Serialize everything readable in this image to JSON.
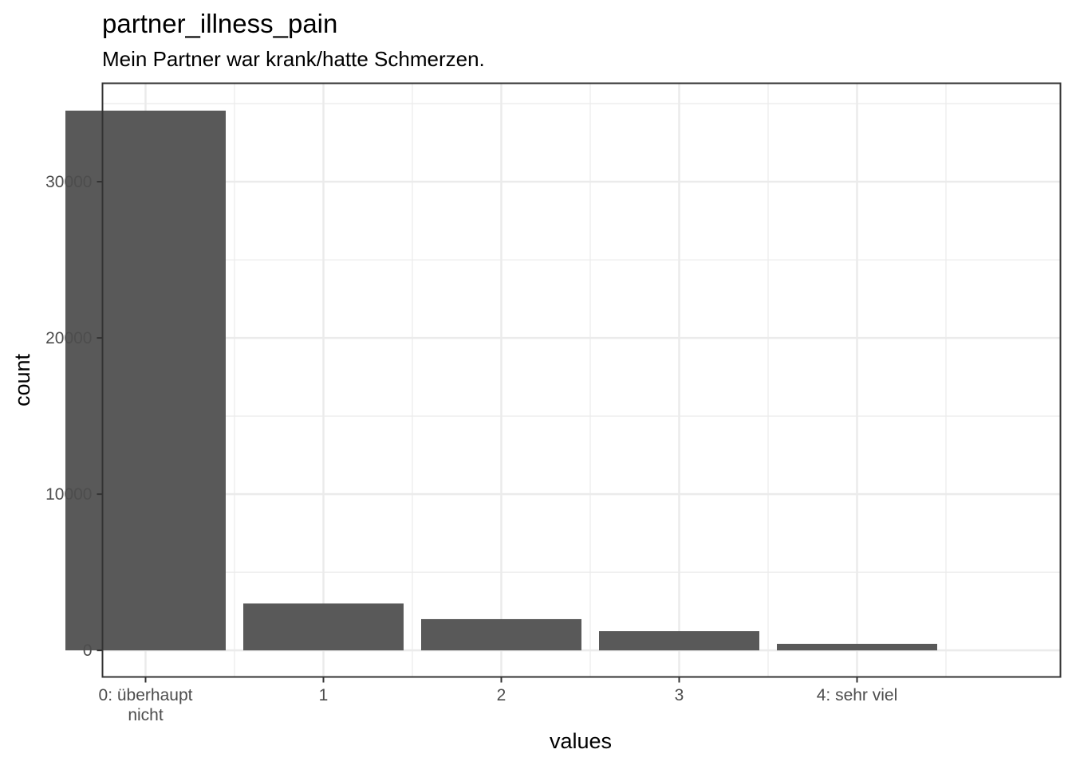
{
  "chart_data": {
    "type": "bar",
    "title": "partner_illness_pain",
    "subtitle": "Mein Partner war krank/hatte Schmerzen.",
    "xlabel": "values",
    "ylabel": "count",
    "categories": [
      [
        "0: überhaupt",
        "nicht"
      ],
      [
        "1"
      ],
      [
        "2"
      ],
      [
        "3"
      ],
      [
        "4: sehr viel"
      ]
    ],
    "values": [
      34550,
      3000,
      2000,
      1230,
      420
    ],
    "ylim": [
      -1700,
      36300
    ],
    "yticks": [
      0,
      10000,
      20000,
      30000
    ],
    "ytick_labels": [
      "0",
      "10000",
      "20000",
      "30000"
    ],
    "bar_color": "#595959",
    "grid": true,
    "legend": "none"
  }
}
